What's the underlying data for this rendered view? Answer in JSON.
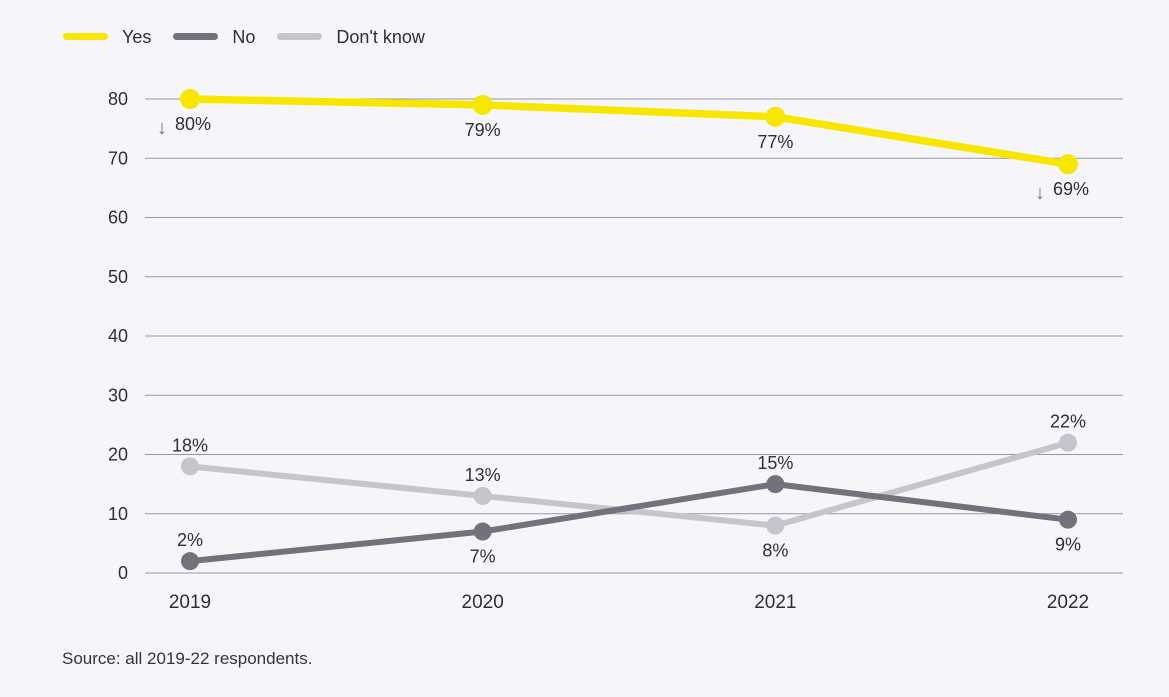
{
  "source": "Source: all 2019-22 respondents.",
  "colors": {
    "background": "#f6f6fa",
    "grid": "#97979f",
    "text": "#2e2e38",
    "axis_text": "#2e2e38",
    "arrow": "#72727d",
    "yes": "#f7e600",
    "no": "#72727d",
    "dont_know": "#c5c5ce"
  },
  "chart_data": {
    "type": "line",
    "title": "",
    "xlabel": "",
    "ylabel": "",
    "categories": [
      "2019",
      "2020",
      "2021",
      "2022"
    ],
    "series": [
      {
        "name": "Yes",
        "color": "#f7e600",
        "values": [
          80,
          79,
          77,
          69
        ],
        "labels": [
          {
            "text": "80%",
            "pos": "below",
            "arrow": true
          },
          {
            "text": "79%",
            "pos": "below",
            "arrow": false
          },
          {
            "text": "77%",
            "pos": "below",
            "arrow": false
          },
          {
            "text": "69%",
            "pos": "below",
            "arrow": true
          }
        ]
      },
      {
        "name": "No",
        "color": "#72727d",
        "values": [
          2,
          7,
          15,
          9
        ],
        "labels": [
          {
            "text": "2%",
            "pos": "above",
            "arrow": false
          },
          {
            "text": "7%",
            "pos": "below",
            "arrow": false
          },
          {
            "text": "15%",
            "pos": "above",
            "arrow": false
          },
          {
            "text": "9%",
            "pos": "below",
            "arrow": false
          }
        ]
      },
      {
        "name": "Don't know",
        "color": "#c5c5ce",
        "values": [
          18,
          13,
          8,
          22
        ],
        "labels": [
          {
            "text": "18%",
            "pos": "above",
            "arrow": false
          },
          {
            "text": "13%",
            "pos": "above",
            "arrow": false
          },
          {
            "text": "8%",
            "pos": "below",
            "arrow": false
          },
          {
            "text": "22%",
            "pos": "above",
            "arrow": false
          }
        ]
      }
    ],
    "ylim": [
      0,
      80
    ],
    "yticks": [
      0,
      10,
      20,
      30,
      40,
      50,
      60,
      70,
      80
    ],
    "grid": true,
    "legend_position": "top-left",
    "annotations": [
      "decrease arrow at 2019 Yes point",
      "decrease arrow at 2022 Yes point"
    ]
  }
}
